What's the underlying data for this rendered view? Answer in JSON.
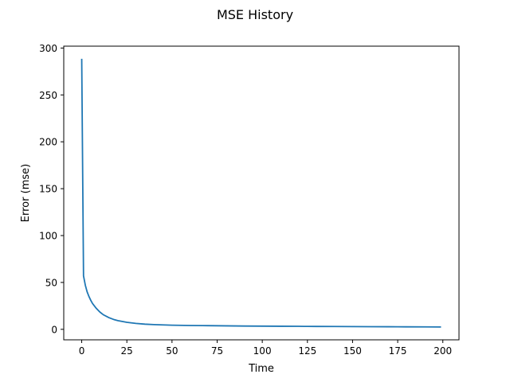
{
  "chart_data": {
    "type": "line",
    "title": "MSE History",
    "xlabel": "Time",
    "ylabel": "Error (mse)",
    "xlim": [
      -9.95,
      208.95
    ],
    "ylim": [
      -11.2,
      302.0
    ],
    "xticks": [
      0,
      25,
      50,
      75,
      100,
      125,
      150,
      175,
      200
    ],
    "yticks": [
      0,
      50,
      100,
      150,
      200,
      250,
      300
    ],
    "grid": false,
    "series": [
      {
        "color": "#1f77b4",
        "x": [
          0,
          1,
          2,
          3,
          4,
          5,
          6,
          8,
          10,
          12,
          15,
          18,
          20,
          25,
          30,
          35,
          40,
          45,
          50,
          60,
          70,
          75,
          80,
          90,
          100,
          110,
          120,
          125,
          130,
          140,
          150,
          160,
          170,
          175,
          180,
          190,
          199
        ],
        "y": [
          288.5,
          57.0,
          47.0,
          40.0,
          35.0,
          31.0,
          27.5,
          22.5,
          18.5,
          15.5,
          12.5,
          10.3,
          9.3,
          7.5,
          6.3,
          5.5,
          5.0,
          4.7,
          4.4,
          4.1,
          3.9,
          3.8,
          3.7,
          3.5,
          3.4,
          3.3,
          3.2,
          3.1,
          3.05,
          3.0,
          2.9,
          2.8,
          2.75,
          2.7,
          2.65,
          2.6,
          2.5
        ]
      }
    ]
  }
}
